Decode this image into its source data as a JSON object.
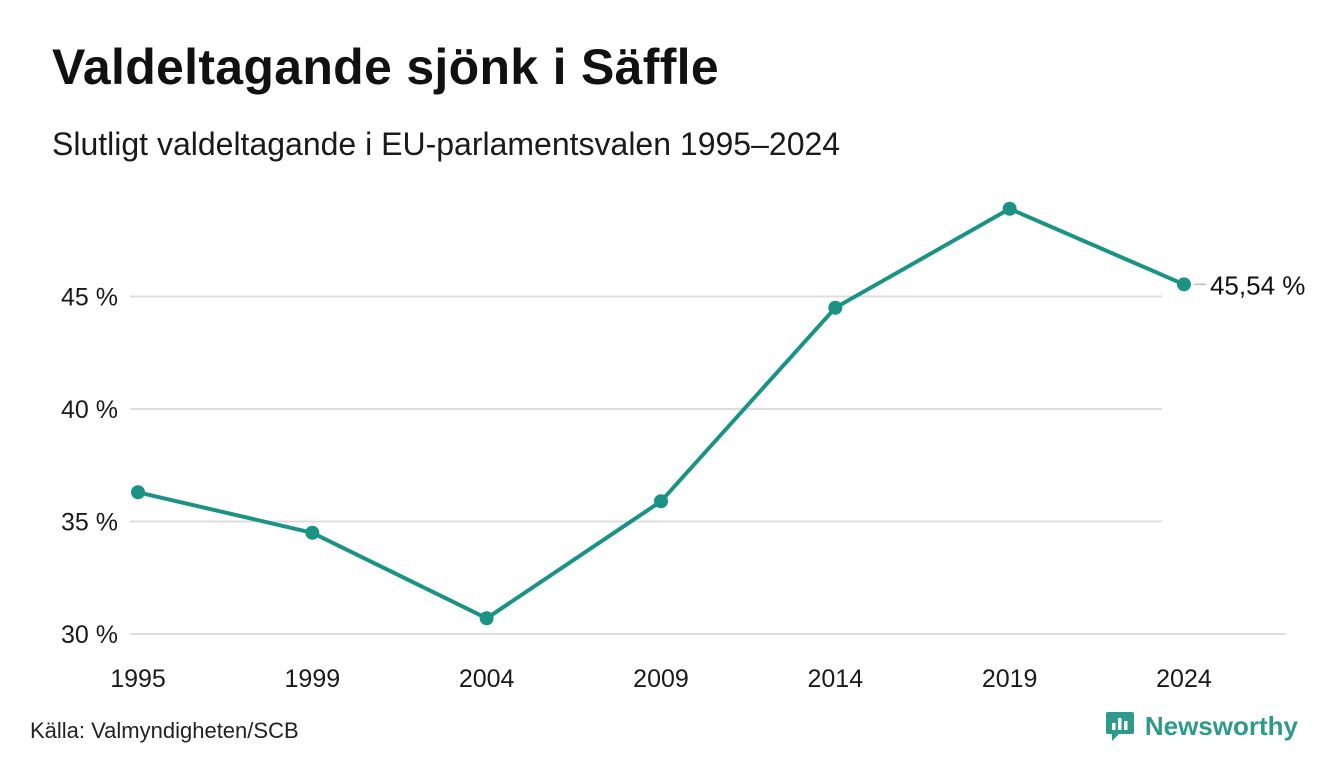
{
  "header": {
    "title": "Valdeltagande sjönk i Säffle",
    "subtitle": "Slutligt valdeltagande i EU-parlamentsvalen 1995–2024"
  },
  "footer": {
    "source": "Källa: Valmyndigheten/SCB",
    "brand": "Newsworthy"
  },
  "colors": {
    "line": "#1a9384",
    "grid": "#dddddd",
    "brand": "#2e9a8a"
  },
  "chart_data": {
    "type": "line",
    "title": "Valdeltagande sjönk i Säffle",
    "subtitle": "Slutligt valdeltagande i EU-parlamentsvalen 1995–2024",
    "xlabel": "",
    "ylabel": "",
    "x": [
      "1995",
      "1999",
      "2004",
      "2009",
      "2014",
      "2019",
      "2024"
    ],
    "series": [
      {
        "values": [
          36.3,
          34.5,
          30.7,
          35.9,
          44.5,
          48.9,
          45.54
        ]
      }
    ],
    "ylim": [
      30,
      49
    ],
    "yticks": [
      30,
      35,
      40,
      45
    ],
    "ytick_labels": [
      "30 %",
      "35 %",
      "40 %",
      "45 %"
    ],
    "end_label": "45,54 %",
    "grid": true,
    "legend": "none",
    "markers": true
  }
}
